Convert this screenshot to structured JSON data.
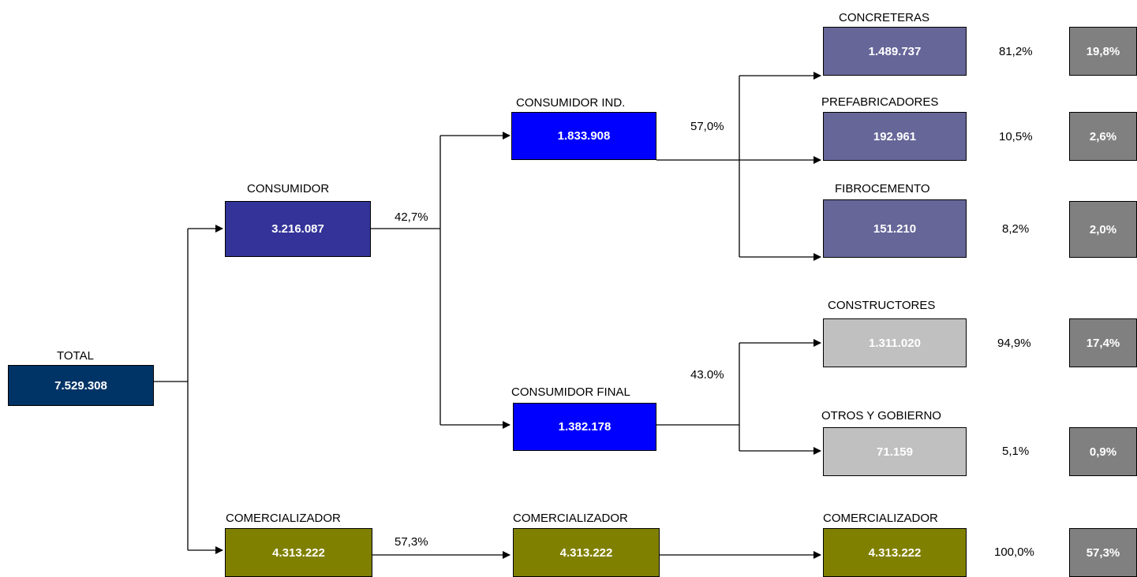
{
  "header": {
    "title": ""
  },
  "nodes": {
    "total": {
      "label": "TOTAL",
      "value": "7.529.308"
    },
    "consumidor": {
      "label": "CONSUMIDOR",
      "value": "3.216.087",
      "pct": "42,7%"
    },
    "consumidor_ind": {
      "label": "CONSUMIDOR IND.",
      "value": "1.833.908",
      "pct": "57,0%"
    },
    "consumidor_final": {
      "label": "CONSUMIDOR FINAL",
      "value": "1.382.178",
      "pct": "43.0%"
    },
    "comercializador_1": {
      "label": "COMERCIALIZADOR",
      "value": "4.313.222",
      "pct": "57,3%"
    },
    "comercializador_2": {
      "label": "COMERCIALIZADOR",
      "value": "4.313.222"
    },
    "comercializador_3": {
      "label": "COMERCIALIZADOR",
      "value": "4.313.222",
      "pct": "100,0%",
      "share": "57,3%"
    },
    "concreteras": {
      "label": "CONCRETERAS",
      "value": "1.489.737",
      "pct": "81,2%",
      "share": "19,8%"
    },
    "prefabricadores": {
      "label": "PREFABRICADORES",
      "value": "192.961",
      "pct": "10,5%",
      "share": "2,6%"
    },
    "fibrocemento": {
      "label": "FIBROCEMENTO",
      "value": "151.210",
      "pct": "8,2%",
      "share": "2,0%"
    },
    "constructores": {
      "label": "CONSTRUCTORES",
      "value": "1.311.020",
      "pct": "94,9%",
      "share": "17,4%"
    },
    "otros_gobierno": {
      "label": "OTROS Y GOBIERNO",
      "value": "71.159",
      "pct": "5,1%",
      "share": "0,9%"
    }
  },
  "colors": {
    "total": "#003366",
    "consumidor": "#333399",
    "consumidor_sub": "#0000ff",
    "industrial_leaf": "#666699",
    "final_leaf": "#c0c0c0",
    "comercializador": "#808000",
    "share": "#808080"
  }
}
